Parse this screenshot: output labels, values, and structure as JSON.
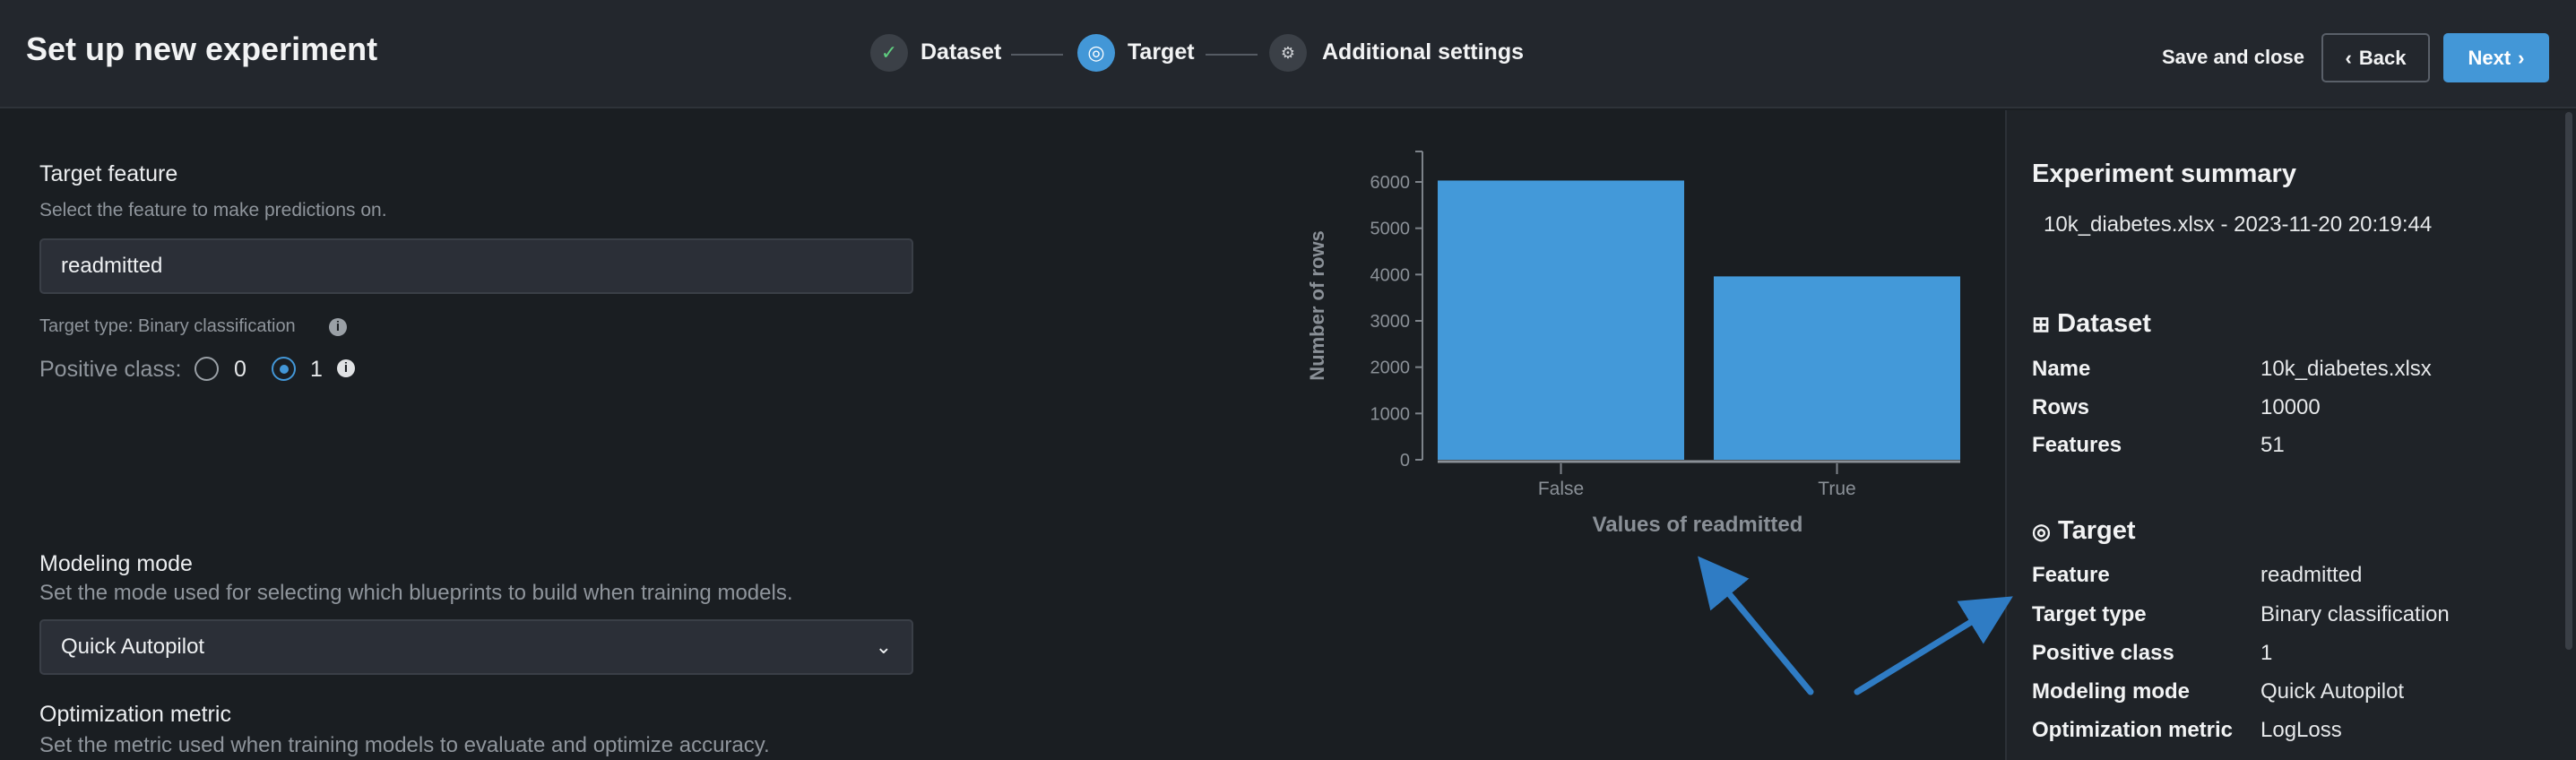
{
  "header": {
    "title": "Set up new experiment",
    "steps": [
      {
        "label": "Dataset",
        "icon": "check-icon",
        "state": "done"
      },
      {
        "label": "Target",
        "icon": "target-icon",
        "state": "active"
      },
      {
        "label": "Additional settings",
        "icon": "gears-icon",
        "state": "pending"
      }
    ],
    "save_label": "Save and close",
    "back_label": "Back",
    "next_label": "Next"
  },
  "target": {
    "title": "Target feature",
    "subtitle": "Select the feature to make predictions on.",
    "value": "readmitted",
    "target_type": "Target type: Binary classification",
    "positive_class_label": "Positive class:",
    "options": [
      "0",
      "1"
    ],
    "selected": "1"
  },
  "modeling": {
    "title": "Modeling mode",
    "subtitle": "Set the mode used for selecting which blueprints to build when training models.",
    "value": "Quick Autopilot"
  },
  "optimization": {
    "title": "Optimization metric",
    "subtitle": "Set the metric used when training models to evaluate and optimize accuracy."
  },
  "chart_data": {
    "type": "bar",
    "categories": [
      "False",
      "True"
    ],
    "values": [
      6030,
      3960
    ],
    "xlabel": "Values of readmitted",
    "ylabel": "Number of rows",
    "ylim": [
      0,
      6500
    ],
    "yticks": [
      "0",
      "1000",
      "2000",
      "3000",
      "4000",
      "5000",
      "6000"
    ],
    "color": "#4399d9",
    "grid": false
  },
  "summary": {
    "title": "Experiment summary",
    "subtitle": "10k_diabetes.xlsx - 2023-11-20 20:19:44",
    "dataset": {
      "title": "Dataset",
      "rows": [
        {
          "k": "Name",
          "v": "10k_diabetes.xlsx"
        },
        {
          "k": "Rows",
          "v": "10000"
        },
        {
          "k": "Features",
          "v": "51"
        }
      ]
    },
    "target": {
      "title": "Target",
      "rows": [
        {
          "k": "Feature",
          "v": "readmitted"
        },
        {
          "k": "Target type",
          "v": "Binary classification"
        },
        {
          "k": "Positive class",
          "v": "1"
        },
        {
          "k": "Modeling mode",
          "v": "Quick Autopilot"
        },
        {
          "k": "Optimization metric",
          "v": "LogLoss"
        }
      ]
    }
  },
  "colors": {
    "accent": "#4397d7",
    "annotation_arrow": "#2f7cc4"
  }
}
